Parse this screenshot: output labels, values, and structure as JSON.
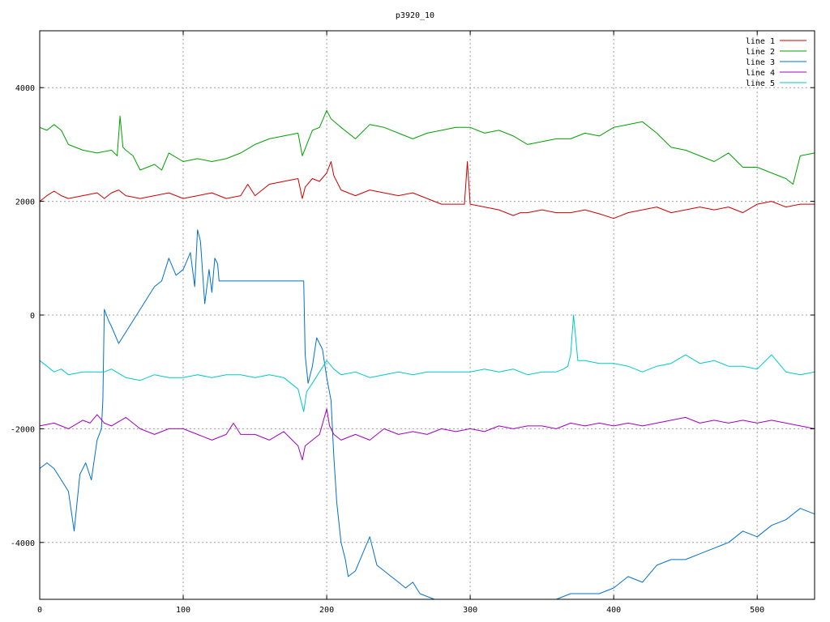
{
  "chart_data": {
    "type": "line",
    "title": "p3920_10",
    "xlabel": "",
    "ylabel": "",
    "xlim": [
      0,
      540
    ],
    "ylim": [
      -5000,
      5000
    ],
    "x_ticks": [
      0,
      100,
      200,
      300,
      400,
      500
    ],
    "y_ticks": [
      -4000,
      -2000,
      0,
      2000,
      4000
    ],
    "x_tick_labels": [
      "0",
      "100",
      "200",
      "300",
      "400",
      "500"
    ],
    "y_tick_labels": [
      "-4000",
      "-2000",
      "0",
      "2000",
      "4000"
    ],
    "grid": true,
    "legend_position": "top-right",
    "series": [
      {
        "name": "line 1",
        "color": "#cc0000",
        "x": [
          0,
          5,
          10,
          15,
          20,
          30,
          40,
          45,
          50,
          55,
          60,
          70,
          80,
          90,
          100,
          110,
          120,
          130,
          140,
          145,
          150,
          160,
          170,
          180,
          183,
          185,
          190,
          195,
          200,
          203,
          205,
          210,
          220,
          230,
          240,
          250,
          260,
          270,
          280,
          290,
          296,
          298,
          300,
          310,
          320,
          330,
          335,
          340,
          350,
          360,
          370,
          380,
          390,
          400,
          410,
          420,
          430,
          440,
          450,
          460,
          470,
          480,
          490,
          500,
          510,
          520,
          530,
          540
        ],
        "y": [
          2000,
          2100,
          2180,
          2100,
          2050,
          2100,
          2150,
          2050,
          2150,
          2200,
          2100,
          2050,
          2100,
          2150,
          2050,
          2100,
          2150,
          2050,
          2100,
          2300,
          2100,
          2300,
          2350,
          2400,
          2050,
          2250,
          2400,
          2350,
          2500,
          2700,
          2450,
          2200,
          2100,
          2200,
          2150,
          2100,
          2150,
          2050,
          1950,
          1950,
          1950,
          2700,
          1950,
          1900,
          1850,
          1750,
          1800,
          1800,
          1850,
          1800,
          1800,
          1850,
          1780,
          1700,
          1800,
          1850,
          1900,
          1800,
          1850,
          1900,
          1850,
          1900,
          1800,
          1950,
          2000,
          1900,
          1950,
          1950
        ]
      },
      {
        "name": "line 2",
        "color": "#00a000",
        "x": [
          0,
          5,
          10,
          15,
          20,
          30,
          40,
          50,
          54,
          56,
          58,
          60,
          65,
          70,
          75,
          80,
          85,
          90,
          100,
          110,
          120,
          130,
          140,
          150,
          160,
          170,
          180,
          183,
          190,
          195,
          200,
          203,
          210,
          220,
          230,
          240,
          250,
          260,
          270,
          280,
          290,
          300,
          310,
          320,
          330,
          340,
          350,
          360,
          370,
          380,
          390,
          400,
          410,
          420,
          430,
          440,
          450,
          460,
          470,
          480,
          490,
          500,
          510,
          520,
          525,
          530,
          540
        ],
        "y": [
          3300,
          3250,
          3350,
          3250,
          3000,
          2900,
          2850,
          2900,
          2800,
          3500,
          2950,
          2900,
          2800,
          2550,
          2600,
          2650,
          2550,
          2850,
          2700,
          2750,
          2700,
          2750,
          2850,
          3000,
          3100,
          3150,
          3200,
          2800,
          3250,
          3300,
          3600,
          3450,
          3300,
          3100,
          3350,
          3300,
          3200,
          3100,
          3200,
          3250,
          3300,
          3300,
          3200,
          3250,
          3150,
          3000,
          3050,
          3100,
          3100,
          3200,
          3150,
          3300,
          3350,
          3400,
          3200,
          2950,
          2900,
          2800,
          2700,
          2850,
          2600,
          2600,
          2500,
          2400,
          2300,
          2800,
          2850
        ]
      },
      {
        "name": "line 3",
        "color": "#0070d0",
        "x": [
          0,
          5,
          10,
          15,
          20,
          24,
          28,
          32,
          36,
          40,
          43,
          44,
          45,
          48,
          50,
          55,
          60,
          65,
          70,
          75,
          80,
          85,
          90,
          95,
          100,
          105,
          108,
          110,
          112,
          115,
          118,
          120,
          122,
          124,
          125,
          150,
          175,
          184,
          185,
          187,
          190,
          193,
          195,
          197,
          200,
          203,
          205,
          207,
          210,
          213,
          215,
          220,
          225,
          230,
          235,
          240,
          245,
          250,
          255,
          260,
          265,
          270,
          275,
          280,
          285,
          290,
          295,
          300,
          310,
          320,
          330,
          340,
          350,
          360,
          370,
          380,
          390,
          400,
          410,
          420,
          430,
          440,
          450,
          460,
          470,
          480,
          490,
          500,
          510,
          520,
          530,
          540
        ],
        "y": [
          -2700,
          -2600,
          -2700,
          -2900,
          -3100,
          -3800,
          -2800,
          -2600,
          -2900,
          -2200,
          -2000,
          -1500,
          100,
          -100,
          -200,
          -500,
          -300,
          -100,
          100,
          300,
          500,
          600,
          1000,
          700,
          800,
          1100,
          500,
          1500,
          1300,
          200,
          800,
          400,
          1000,
          900,
          600,
          600,
          600,
          600,
          -700,
          -1200,
          -900,
          -400,
          -500,
          -600,
          -1100,
          -1500,
          -2500,
          -3300,
          -4000,
          -4300,
          -4600,
          -4500,
          -4200,
          -3900,
          -4400,
          -4500,
          -4600,
          -4700,
          -4800,
          -4700,
          -4900,
          -4950,
          -5000,
          -5000,
          -5000,
          -5000,
          -5000,
          -5000,
          -5000,
          -5000,
          -5000,
          -5000,
          -5000,
          -5000,
          -4900,
          -4900,
          -4900,
          -4800,
          -4600,
          -4700,
          -4400,
          -4300,
          -4300,
          -4200,
          -4100,
          -4000,
          -3800,
          -3900,
          -3700,
          -3600,
          -3400,
          -3500
        ]
      },
      {
        "name": "line 4",
        "color": "#a000c0",
        "x": [
          0,
          10,
          20,
          30,
          35,
          40,
          45,
          50,
          60,
          70,
          80,
          90,
          100,
          110,
          120,
          130,
          135,
          140,
          150,
          160,
          170,
          180,
          183,
          185,
          190,
          195,
          200,
          202,
          205,
          210,
          220,
          230,
          240,
          250,
          260,
          270,
          280,
          290,
          300,
          310,
          320,
          330,
          340,
          350,
          360,
          370,
          380,
          390,
          400,
          410,
          420,
          430,
          440,
          450,
          460,
          470,
          480,
          490,
          500,
          510,
          520,
          530,
          540
        ],
        "y": [
          -1950,
          -1900,
          -2000,
          -1850,
          -1900,
          -1750,
          -1900,
          -1950,
          -1800,
          -2000,
          -2100,
          -2000,
          -2000,
          -2100,
          -2200,
          -2100,
          -1900,
          -2100,
          -2100,
          -2200,
          -2050,
          -2300,
          -2550,
          -2300,
          -2200,
          -2100,
          -1650,
          -1950,
          -2100,
          -2200,
          -2100,
          -2200,
          -2000,
          -2100,
          -2050,
          -2100,
          -2000,
          -2050,
          -2000,
          -2050,
          -1950,
          -2000,
          -1950,
          -1950,
          -2000,
          -1900,
          -1950,
          -1900,
          -1950,
          -1900,
          -1950,
          -1900,
          -1850,
          -1800,
          -1900,
          -1850,
          -1900,
          -1850,
          -1900,
          -1850,
          -1900,
          -1950,
          -2000
        ]
      },
      {
        "name": "line 5",
        "color": "#00c8c8",
        "x": [
          0,
          5,
          10,
          15,
          20,
          30,
          40,
          45,
          50,
          60,
          70,
          80,
          90,
          100,
          110,
          120,
          130,
          140,
          150,
          160,
          170,
          180,
          184,
          186,
          190,
          195,
          200,
          205,
          210,
          220,
          230,
          240,
          250,
          260,
          270,
          280,
          290,
          300,
          310,
          320,
          330,
          340,
          350,
          360,
          365,
          368,
          370,
          372,
          375,
          380,
          390,
          400,
          410,
          420,
          430,
          440,
          450,
          460,
          470,
          480,
          490,
          500,
          510,
          520,
          530,
          540
        ],
        "y": [
          -800,
          -900,
          -1000,
          -950,
          -1050,
          -1000,
          -1000,
          -1000,
          -950,
          -1100,
          -1150,
          -1050,
          -1100,
          -1100,
          -1050,
          -1100,
          -1050,
          -1050,
          -1100,
          -1050,
          -1100,
          -1300,
          -1700,
          -1350,
          -1200,
          -1000,
          -800,
          -950,
          -1050,
          -1000,
          -1100,
          -1050,
          -1000,
          -1050,
          -1000,
          -1000,
          -1000,
          -1000,
          -950,
          -1000,
          -950,
          -1050,
          -1000,
          -1000,
          -950,
          -900,
          -700,
          0,
          -800,
          -800,
          -850,
          -850,
          -900,
          -1000,
          -900,
          -850,
          -700,
          -850,
          -800,
          -900,
          -900,
          -950,
          -700,
          -1000,
          -1050,
          -1000
        ]
      }
    ]
  }
}
